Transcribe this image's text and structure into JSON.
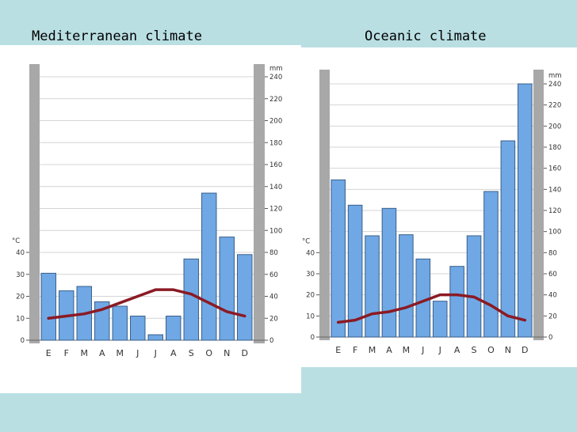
{
  "titles": {
    "left": "Mediterranean climate",
    "right": "Oceanic climate"
  },
  "colors": {
    "background": "#b9dfe3",
    "bar_fill": "#6fa8e4",
    "bar_stroke": "#3a5f8c",
    "temperature_line": "#8b1a24",
    "side_column": "#a8a8a8"
  },
  "chart_data": [
    {
      "type": "bar",
      "title": "Mediterranean climate",
      "categories": [
        "E",
        "F",
        "M",
        "A",
        "M",
        "J",
        "J",
        "A",
        "S",
        "O",
        "N",
        "D"
      ],
      "series": [
        {
          "values": [
            61,
            45,
            49,
            35,
            31,
            22,
            5,
            22,
            74,
            134,
            94,
            78
          ]
        },
        {
          "type": "line",
          "values": [
            10,
            11,
            12,
            14,
            17,
            20,
            23,
            23,
            21,
            17,
            13,
            11
          ]
        }
      ],
      "ylabel_left": "°C",
      "ylabel_right": "mm",
      "ylim_left": [
        0,
        120
      ],
      "ylim_right": [
        0,
        240
      ],
      "temp_ticks": [
        0,
        10,
        20,
        30,
        40
      ],
      "precip_ticks": [
        0,
        20,
        40,
        60,
        80,
        100,
        120,
        140,
        160,
        180,
        200,
        220,
        240
      ],
      "grid": true
    },
    {
      "type": "bar",
      "title": "Oceanic climate",
      "categories": [
        "E",
        "F",
        "M",
        "A",
        "M",
        "J",
        "J",
        "A",
        "S",
        "O",
        "N",
        "D"
      ],
      "series": [
        {
          "values": [
            149,
            125,
            96,
            122,
            97,
            74,
            34,
            67,
            96,
            138,
            186,
            240
          ]
        },
        {
          "type": "line",
          "values": [
            7,
            8,
            11,
            12,
            14,
            17,
            20,
            20,
            19,
            15,
            10,
            8
          ]
        }
      ],
      "ylabel_left": "°C",
      "ylabel_right": "mm",
      "ylim_left": [
        0,
        120
      ],
      "ylim_right": [
        0,
        240
      ],
      "temp_ticks": [
        0,
        10,
        20,
        30,
        40
      ],
      "precip_ticks": [
        0,
        20,
        40,
        60,
        80,
        100,
        120,
        140,
        160,
        180,
        200,
        220,
        240
      ],
      "grid": true
    }
  ]
}
